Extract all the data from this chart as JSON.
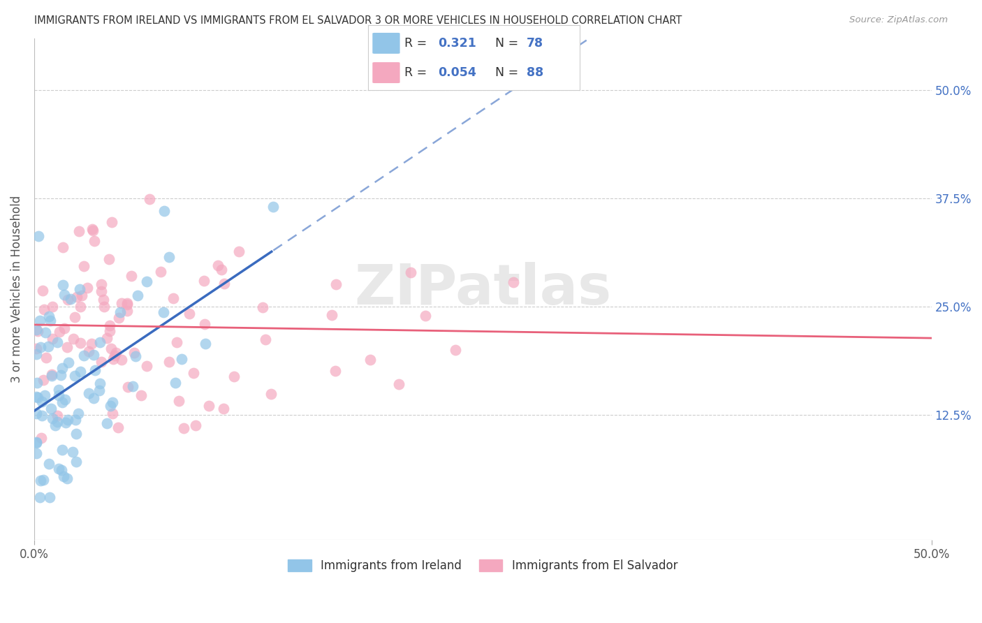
{
  "title": "IMMIGRANTS FROM IRELAND VS IMMIGRANTS FROM EL SALVADOR 3 OR MORE VEHICLES IN HOUSEHOLD CORRELATION CHART",
  "source": "Source: ZipAtlas.com",
  "ylabel": "3 or more Vehicles in Household",
  "ytick_labels": [
    "12.5%",
    "25.0%",
    "37.5%",
    "50.0%"
  ],
  "ytick_values": [
    0.125,
    0.25,
    0.375,
    0.5
  ],
  "xlim": [
    0.0,
    0.5
  ],
  "ylim": [
    -0.02,
    0.56
  ],
  "legend_ireland_R": "0.321",
  "legend_ireland_N": "78",
  "legend_salvador_R": "0.054",
  "legend_salvador_N": "88",
  "legend_label_ireland": "Immigrants from Ireland",
  "legend_label_salvador": "Immigrants from El Salvador",
  "color_ireland": "#92C5E8",
  "color_salvador": "#F4A8BF",
  "color_ireland_line": "#3A6BBF",
  "color_salvador_line": "#E8607A",
  "color_legend_text": "#4472C4",
  "watermark": "ZIPatlas",
  "background_color": "#FFFFFF",
  "grid_color": "#DDDDDD",
  "ireland_seed": 12,
  "salvador_seed": 7
}
